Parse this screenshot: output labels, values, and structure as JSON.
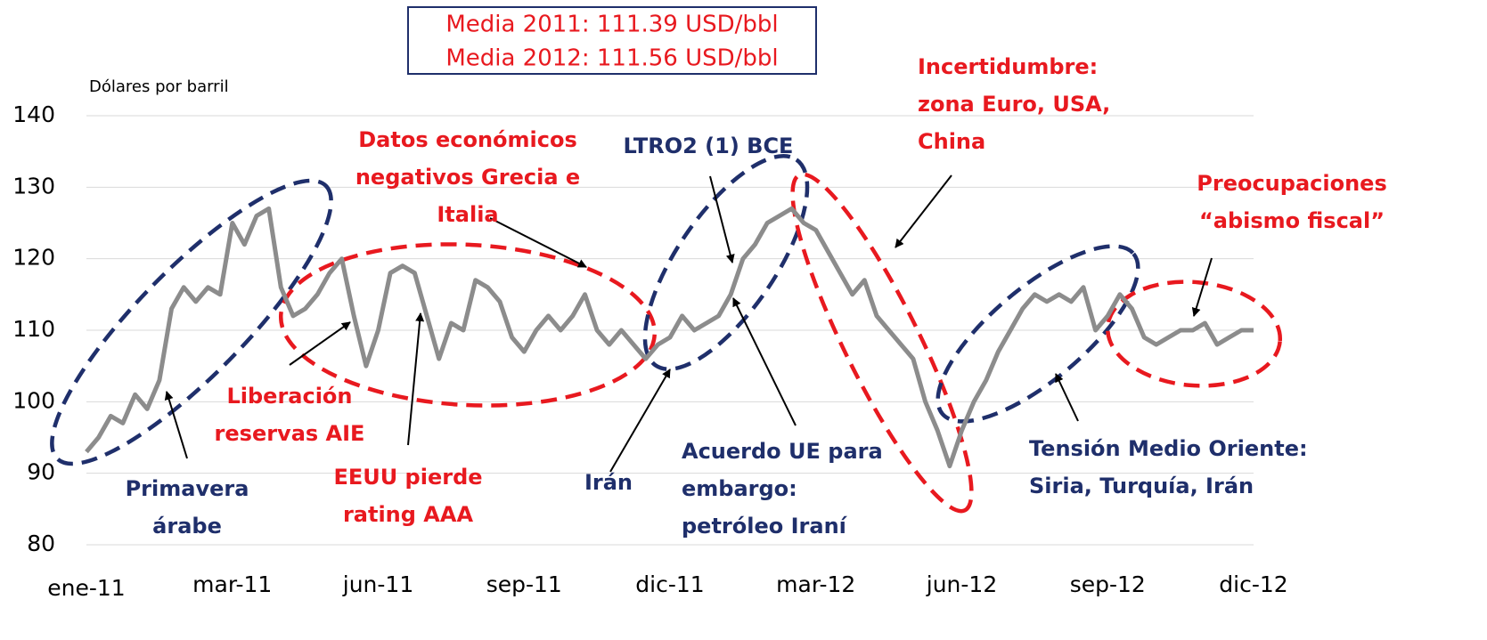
{
  "chart_data": {
    "type": "line",
    "ylabel": "Dólares por barril",
    "categories": [
      "ene-11",
      null,
      null,
      null,
      null,
      null,
      null,
      null,
      null,
      null,
      null,
      null,
      "mar-11",
      null,
      null,
      null,
      null,
      null,
      null,
      null,
      null,
      null,
      null,
      null,
      "jun-11",
      null,
      null,
      null,
      null,
      null,
      null,
      null,
      null,
      null,
      null,
      null,
      "sep-11",
      null,
      null,
      null,
      null,
      null,
      null,
      null,
      null,
      null,
      null,
      null,
      "dic-11",
      null,
      null,
      null,
      null,
      null,
      null,
      null,
      null,
      null,
      null,
      null,
      "mar-12",
      null,
      null,
      null,
      null,
      null,
      null,
      null,
      null,
      null,
      null,
      null,
      "jun-12",
      null,
      null,
      null,
      null,
      null,
      null,
      null,
      null,
      null,
      null,
      null,
      "sep-12",
      null,
      null,
      null,
      null,
      null,
      null,
      null,
      null,
      null,
      null,
      null,
      "dic-12"
    ],
    "series": [
      {
        "color": "#8c8c8c",
        "values": [
          93,
          95,
          98,
          97,
          101,
          99,
          103,
          113,
          116,
          114,
          116,
          115,
          125,
          122,
          126,
          127,
          116,
          112,
          113,
          115,
          118,
          120,
          112,
          105,
          110,
          118,
          119,
          118,
          112,
          106,
          111,
          110,
          117,
          116,
          114,
          109,
          107,
          110,
          112,
          110,
          112,
          115,
          110,
          108,
          110,
          108,
          106,
          108,
          109,
          112,
          110,
          111,
          112,
          115,
          120,
          122,
          125,
          126,
          127,
          125,
          124,
          121,
          118,
          115,
          117,
          112,
          110,
          108,
          106,
          100,
          96,
          91,
          96,
          100,
          103,
          107,
          110,
          113,
          115,
          114,
          115,
          114,
          116,
          110,
          112,
          115,
          113,
          109,
          108,
          109,
          110,
          110,
          111,
          108,
          109,
          110,
          110
        ]
      }
    ],
    "ylim": [
      80,
      140
    ],
    "yticks": [
      80,
      90,
      100,
      110,
      120,
      130,
      140
    ],
    "grid": true,
    "info_box": [
      "Media 2011: 111.39 USD/bbl",
      "Media 2012: 111.56 USD/bbl"
    ],
    "annotations": [
      {
        "lines": [
          "Primavera",
          "árabe"
        ],
        "color": "#1f2f6b"
      },
      {
        "lines": [
          "Liberación",
          "reservas AIE"
        ],
        "color": "#e8191f"
      },
      {
        "lines": [
          "EEUU pierde",
          "rating AAA"
        ],
        "color": "#e8191f"
      },
      {
        "lines": [
          "Datos económicos",
          "negativos Grecia e",
          "Italia"
        ],
        "color": "#e8191f"
      },
      {
        "lines": [
          "Irán"
        ],
        "color": "#1f2f6b"
      },
      {
        "lines": [
          "LTRO2 (1) BCE"
        ],
        "color": "#1f2f6b"
      },
      {
        "lines": [
          "Acuerdo UE para",
          "embargo:",
          "petróleo Iraní"
        ],
        "color": "#1f2f6b"
      },
      {
        "lines": [
          "Incertidumbre:",
          "zona Euro, USA,",
          "China"
        ],
        "color": "#e8191f"
      },
      {
        "lines": [
          "Preocupaciones",
          "“abismo fiscal”"
        ],
        "color": "#e8191f"
      },
      {
        "lines": [
          "Tensión Medio Oriente:",
          "Siria, Turquía, Irán"
        ],
        "color": "#1f2f6b"
      }
    ]
  }
}
